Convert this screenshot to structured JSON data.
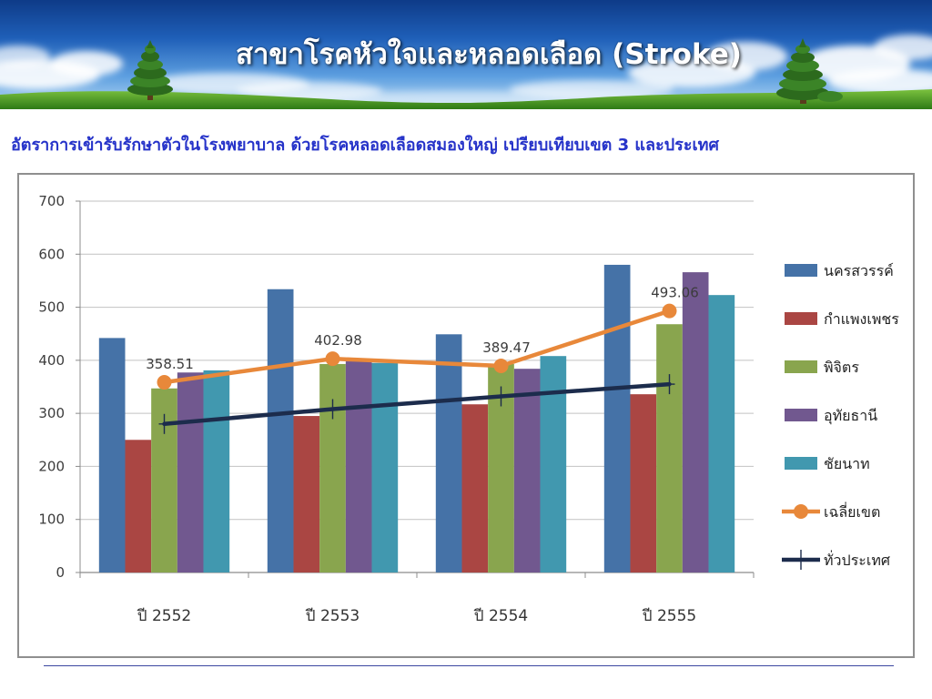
{
  "slide": {
    "title": "สาขาโรคหัวใจและหลอดเลือด (Stroke)",
    "subtitle": "อัตราการเข้ารับรักษาตัวในโรงพยาบาล ด้วยโรคหลอดเลือดสมองใหญ่ เปรียบเทียบเขต 3 และประเทศ"
  },
  "theme": {
    "title_color": "#ffffff",
    "subtitle_color": "#2633c9",
    "footer_rule_color": "#3b47a0"
  },
  "chart_data": {
    "type": "bar",
    "categories": [
      "ปี 2552",
      "ปี 2553",
      "ปี 2554",
      "ปี 2555"
    ],
    "ylim": [
      0,
      700
    ],
    "yticks": [
      0,
      100,
      200,
      300,
      400,
      500,
      600,
      700
    ],
    "grid": true,
    "legend": "right",
    "series": [
      {
        "name": "นครสวรรค์",
        "type": "bar",
        "color": "#4572A7",
        "values": [
          442,
          534,
          449,
          580
        ]
      },
      {
        "name": "กำแพงเพชร",
        "type": "bar",
        "color": "#AA4643",
        "values": [
          250,
          295,
          317,
          336
        ]
      },
      {
        "name": "พิจิตร",
        "type": "bar",
        "color": "#89A54E",
        "values": [
          347,
          393,
          393,
          468
        ]
      },
      {
        "name": "อุทัยธานี",
        "type": "bar",
        "color": "#71588F",
        "values": [
          377,
          398,
          384,
          566
        ]
      },
      {
        "name": "ชัยนาท",
        "type": "bar",
        "color": "#4198AF",
        "values": [
          381,
          395,
          408,
          523
        ]
      },
      {
        "name": "เฉลี่ยเขต",
        "type": "line",
        "marker": "circle",
        "color": "#E8883A",
        "values": [
          358.51,
          402.98,
          389.47,
          493.06
        ],
        "data_labels": true
      },
      {
        "name": "ทั่วประเทศ",
        "type": "line",
        "marker": "plus",
        "color": "#1C2C4C",
        "values": [
          280,
          308,
          332,
          355
        ]
      }
    ]
  }
}
